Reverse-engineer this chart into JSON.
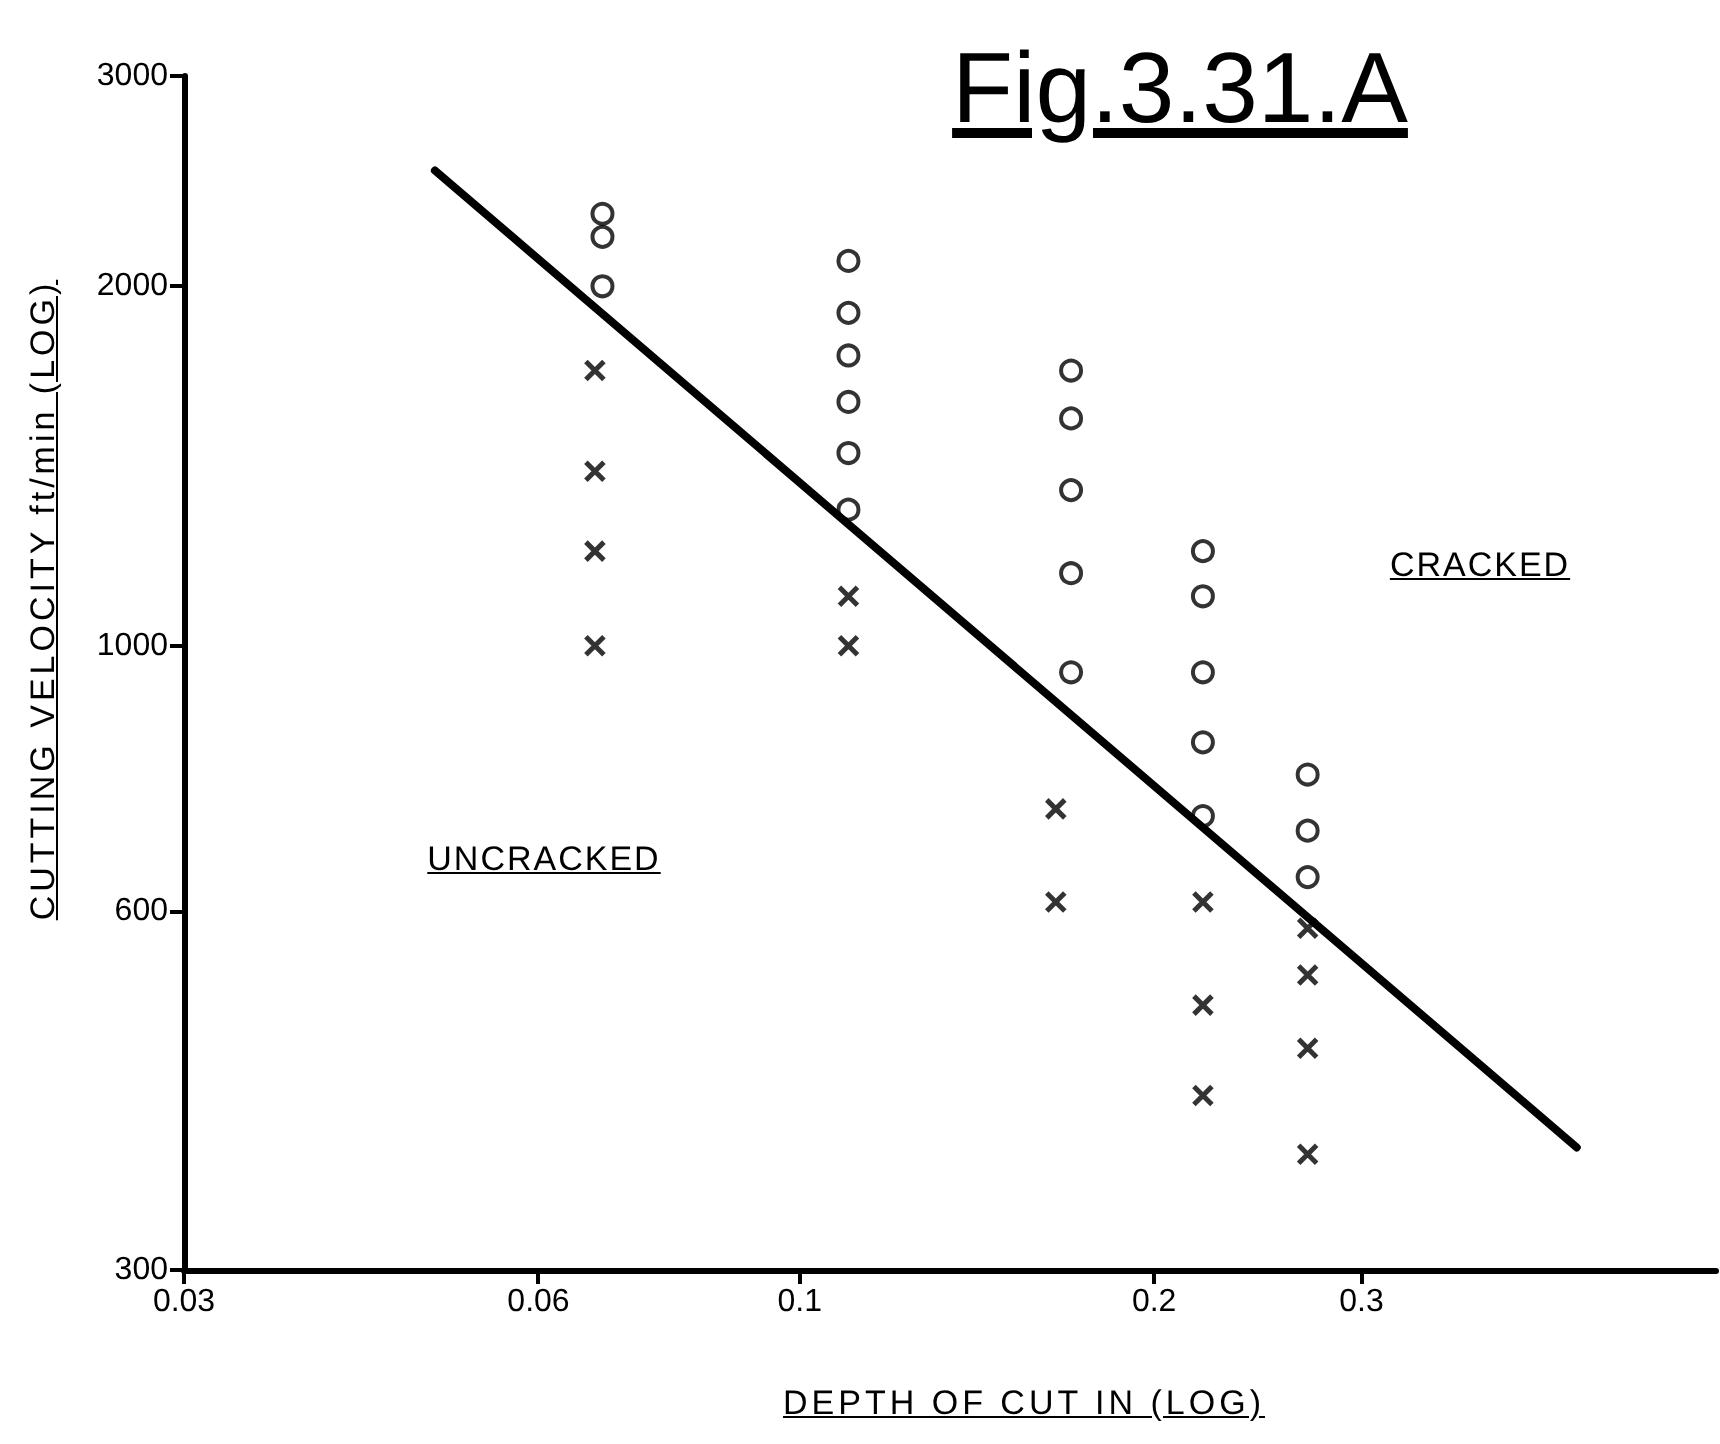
{
  "chart_data": {
    "type": "scatter",
    "title": "Fig.3.31.A",
    "xlabel": "DEPTH OF CUT IN (LOG)",
    "ylabel": "CUTTING VELOCITY ft/min (LOG)",
    "annotations": [
      "CRACKED",
      "UNCRACKED"
    ],
    "log": "xy",
    "xlim": [
      0.03,
      0.6
    ],
    "ylim": [
      300,
      3000
    ],
    "xticks": [
      0.03,
      0.06,
      0.1,
      0.2,
      0.3
    ],
    "yticks": [
      300,
      600,
      1000,
      2000,
      3000
    ],
    "series": [
      {
        "marker": "circle",
        "color": "#000000",
        "x": [
          0.068,
          0.068,
          0.068,
          0.11,
          0.11,
          0.11,
          0.11,
          0.11,
          0.11,
          0.17,
          0.17,
          0.17,
          0.17,
          0.17,
          0.22,
          0.22,
          0.22,
          0.22,
          0.22,
          0.27,
          0.27,
          0.27
        ],
        "values": [
          2300,
          2200,
          2000,
          2100,
          1900,
          1750,
          1600,
          1450,
          1300,
          1700,
          1550,
          1350,
          1150,
          950,
          1200,
          1100,
          950,
          830,
          720,
          780,
          700,
          640
        ]
      },
      {
        "marker": "cross",
        "color": "#000000",
        "x": [
          0.067,
          0.067,
          0.067,
          0.067,
          0.11,
          0.11,
          0.165,
          0.165,
          0.22,
          0.22,
          0.22,
          0.27,
          0.27,
          0.27,
          0.27
        ],
        "values": [
          1700,
          1400,
          1200,
          1000,
          1100,
          1000,
          730,
          610,
          610,
          500,
          420,
          580,
          530,
          460,
          375
        ]
      },
      {
        "type": "line",
        "marker": "none",
        "line_style": "solid",
        "color": "#000000",
        "x": [
          0.049,
          0.457
        ],
        "values": [
          2500,
          380
        ]
      }
    ]
  }
}
